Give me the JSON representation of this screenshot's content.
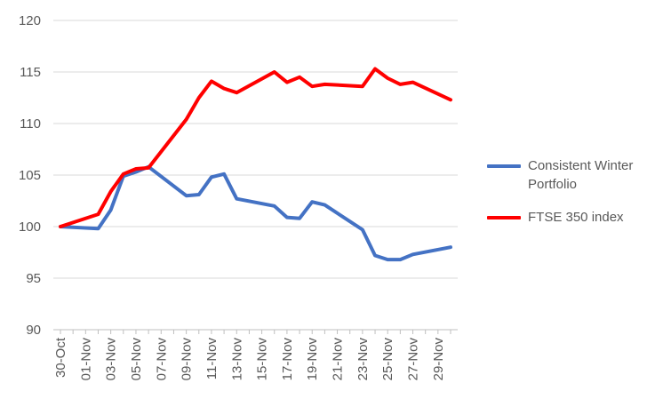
{
  "chart_data": {
    "type": "line",
    "title": "",
    "xlabel": "",
    "ylabel": "",
    "ylim": [
      90,
      120
    ],
    "yticks": [
      90,
      95,
      100,
      105,
      110,
      115,
      120
    ],
    "grid": true,
    "legend_position": "right",
    "dates": [
      "30-Oct",
      "31-Oct",
      "01-Nov",
      "02-Nov",
      "03-Nov",
      "04-Nov",
      "05-Nov",
      "06-Nov",
      "07-Nov",
      "08-Nov",
      "09-Nov",
      "10-Nov",
      "11-Nov",
      "12-Nov",
      "13-Nov",
      "14-Nov",
      "15-Nov",
      "16-Nov",
      "17-Nov",
      "18-Nov",
      "19-Nov",
      "20-Nov",
      "21-Nov",
      "22-Nov",
      "23-Nov",
      "24-Nov",
      "25-Nov",
      "26-Nov",
      "27-Nov",
      "28-Nov",
      "29-Nov",
      "30-Nov"
    ],
    "tick_labels": [
      "30-Oct",
      "01-Nov",
      "03-Nov",
      "05-Nov",
      "07-Nov",
      "09-Nov",
      "11-Nov",
      "13-Nov",
      "15-Nov",
      "17-Nov",
      "19-Nov",
      "21-Nov",
      "23-Nov",
      "25-Nov",
      "27-Nov",
      "29-Nov"
    ],
    "series": [
      {
        "name": "Consistent Winter Portfolio",
        "color": "#4472C4",
        "x": [
          "30-Oct",
          "02-Nov",
          "03-Nov",
          "04-Nov",
          "05-Nov",
          "06-Nov",
          "09-Nov",
          "10-Nov",
          "11-Nov",
          "12-Nov",
          "13-Nov",
          "16-Nov",
          "17-Nov",
          "18-Nov",
          "19-Nov",
          "20-Nov",
          "23-Nov",
          "24-Nov",
          "25-Nov",
          "26-Nov",
          "27-Nov",
          "30-Nov"
        ],
        "y": [
          100,
          99.8,
          101.6,
          104.9,
          105.3,
          105.8,
          103.0,
          103.1,
          104.8,
          105.1,
          102.7,
          102.0,
          100.9,
          100.8,
          102.4,
          102.1,
          99.7,
          97.2,
          96.8,
          96.8,
          97.3,
          98.0
        ]
      },
      {
        "name": "FTSE 350 index",
        "color": "#FF0000",
        "x": [
          "30-Oct",
          "02-Nov",
          "03-Nov",
          "04-Nov",
          "05-Nov",
          "06-Nov",
          "09-Nov",
          "10-Nov",
          "11-Nov",
          "12-Nov",
          "13-Nov",
          "16-Nov",
          "17-Nov",
          "18-Nov",
          "19-Nov",
          "20-Nov",
          "23-Nov",
          "24-Nov",
          "25-Nov",
          "26-Nov",
          "27-Nov",
          "30-Nov"
        ],
        "y": [
          100,
          101.2,
          103.4,
          105.1,
          105.6,
          105.7,
          110.4,
          112.5,
          114.1,
          113.4,
          113.0,
          115.0,
          114.0,
          114.5,
          113.6,
          113.8,
          113.6,
          115.3,
          114.4,
          113.8,
          114.0,
          112.3
        ]
      }
    ]
  }
}
